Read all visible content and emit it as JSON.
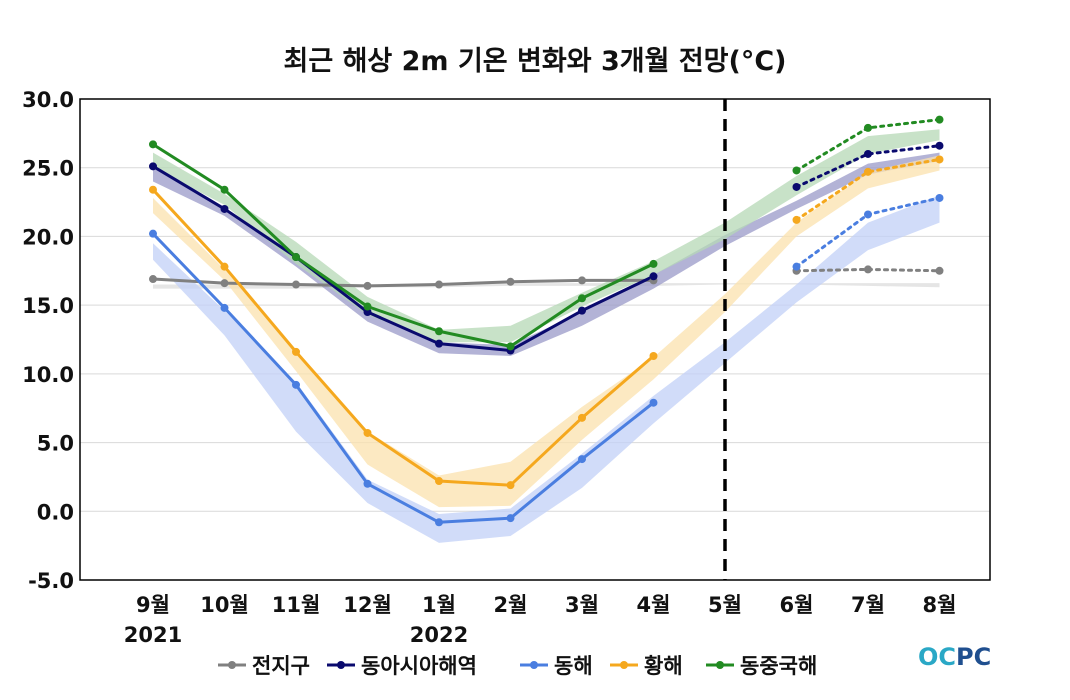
{
  "chart_data": {
    "type": "line",
    "title": "최근 해상 2m 기온 변화와 3개월 전망(°C)",
    "categories": [
      "9월",
      "10월",
      "11월",
      "12월",
      "1월",
      "2월",
      "3월",
      "4월",
      "5월",
      "6월",
      "7월",
      "8월"
    ],
    "year_labels": [
      {
        "category_index": 0,
        "label": "2021"
      },
      {
        "category_index": 4,
        "label": "2022"
      }
    ],
    "ylim": [
      -5.0,
      30.0
    ],
    "yticks": [
      "30.0",
      "25.0",
      "20.0",
      "15.0",
      "10.0",
      "5.0",
      "0.0",
      "-5.0"
    ],
    "ytick_values": [
      30,
      25,
      20,
      15,
      10,
      5,
      0,
      -5
    ],
    "grid": "horizontal",
    "divider_category_index": 8,
    "legend_position": "bottom",
    "series": [
      {
        "name": "전지구",
        "color": "#808080",
        "band_color": "#dcdcdc",
        "observed": [
          16.9,
          16.6,
          16.5,
          16.4,
          16.5,
          16.7,
          16.8,
          16.8,
          null,
          null,
          null,
          null
        ],
        "forecast": [
          null,
          null,
          null,
          null,
          null,
          null,
          null,
          null,
          null,
          17.5,
          17.6,
          17.5
        ],
        "band_low": [
          16.2,
          16.2,
          16.2,
          16.3,
          16.3,
          16.4,
          16.4,
          16.4,
          16.5,
          16.5,
          16.4,
          16.3
        ],
        "band_high": [
          16.5,
          16.5,
          16.5,
          16.5,
          16.5,
          16.6,
          16.6,
          16.6,
          16.6,
          16.6,
          16.6,
          16.6
        ]
      },
      {
        "name": "동아시아해역",
        "color": "#0a0a6e",
        "band_color": "#9a9ac8",
        "observed": [
          25.1,
          22.0,
          18.5,
          14.5,
          12.2,
          11.7,
          14.6,
          17.1,
          null,
          null,
          null,
          null
        ],
        "forecast": [
          null,
          null,
          null,
          null,
          null,
          null,
          null,
          null,
          null,
          23.6,
          26.0,
          26.6
        ],
        "band_low": [
          24.0,
          21.5,
          17.8,
          13.8,
          11.5,
          11.3,
          13.5,
          16.2,
          19.3,
          22.0,
          24.5,
          25.5
        ],
        "band_high": [
          25.0,
          22.1,
          18.6,
          14.5,
          12.3,
          12.1,
          14.5,
          17.2,
          20.1,
          22.6,
          25.3,
          26.1
        ]
      },
      {
        "name": "동해",
        "color": "#4a7ee0",
        "band_color": "#c2d0f7",
        "observed": [
          20.2,
          14.8,
          9.2,
          2.0,
          -0.8,
          -0.5,
          3.8,
          7.9,
          null,
          null,
          null,
          null
        ],
        "forecast": [
          null,
          null,
          null,
          null,
          null,
          null,
          null,
          null,
          null,
          17.8,
          21.6,
          22.8
        ],
        "band_low": [
          18.3,
          12.8,
          5.8,
          0.6,
          -2.3,
          -1.8,
          1.7,
          6.4,
          10.8,
          15.2,
          19.0,
          21.0
        ],
        "band_high": [
          19.5,
          14.6,
          9.4,
          2.3,
          -0.2,
          0.2,
          4.2,
          8.4,
          12.3,
          16.5,
          21.0,
          23.0
        ]
      },
      {
        "name": "황해",
        "color": "#f5a81e",
        "band_color": "#fbe1ad",
        "observed": [
          23.4,
          17.8,
          11.6,
          5.7,
          2.2,
          1.9,
          6.8,
          11.3,
          null,
          null,
          null,
          null
        ],
        "forecast": [
          null,
          null,
          null,
          null,
          null,
          null,
          null,
          null,
          null,
          21.2,
          24.7,
          25.6
        ],
        "band_low": [
          21.7,
          16.8,
          10.2,
          3.4,
          0.3,
          0.4,
          5.2,
          9.6,
          14.5,
          20.0,
          23.5,
          24.8
        ],
        "band_high": [
          22.8,
          17.6,
          11.6,
          5.8,
          2.6,
          3.6,
          7.6,
          11.2,
          15.8,
          21.0,
          24.7,
          25.9
        ]
      },
      {
        "name": "동중국해",
        "color": "#228b22",
        "band_color": "#b5d8b5",
        "observed": [
          26.7,
          23.4,
          18.5,
          14.9,
          13.1,
          12.0,
          15.5,
          18.0,
          null,
          null,
          null,
          null
        ],
        "forecast": [
          null,
          null,
          null,
          null,
          null,
          null,
          null,
          null,
          null,
          24.8,
          27.9,
          28.5
        ],
        "band_low": [
          25.0,
          22.3,
          18.0,
          14.3,
          12.3,
          12.3,
          14.9,
          17.2,
          19.8,
          23.0,
          26.0,
          27.0
        ],
        "band_high": [
          26.1,
          23.1,
          19.6,
          15.6,
          13.2,
          13.5,
          15.9,
          18.2,
          21.0,
          24.4,
          27.3,
          27.8
        ]
      }
    ]
  },
  "logo": {
    "text": "OCPC",
    "colors": [
      "#2aa8c6",
      "#1f4f8f"
    ]
  }
}
